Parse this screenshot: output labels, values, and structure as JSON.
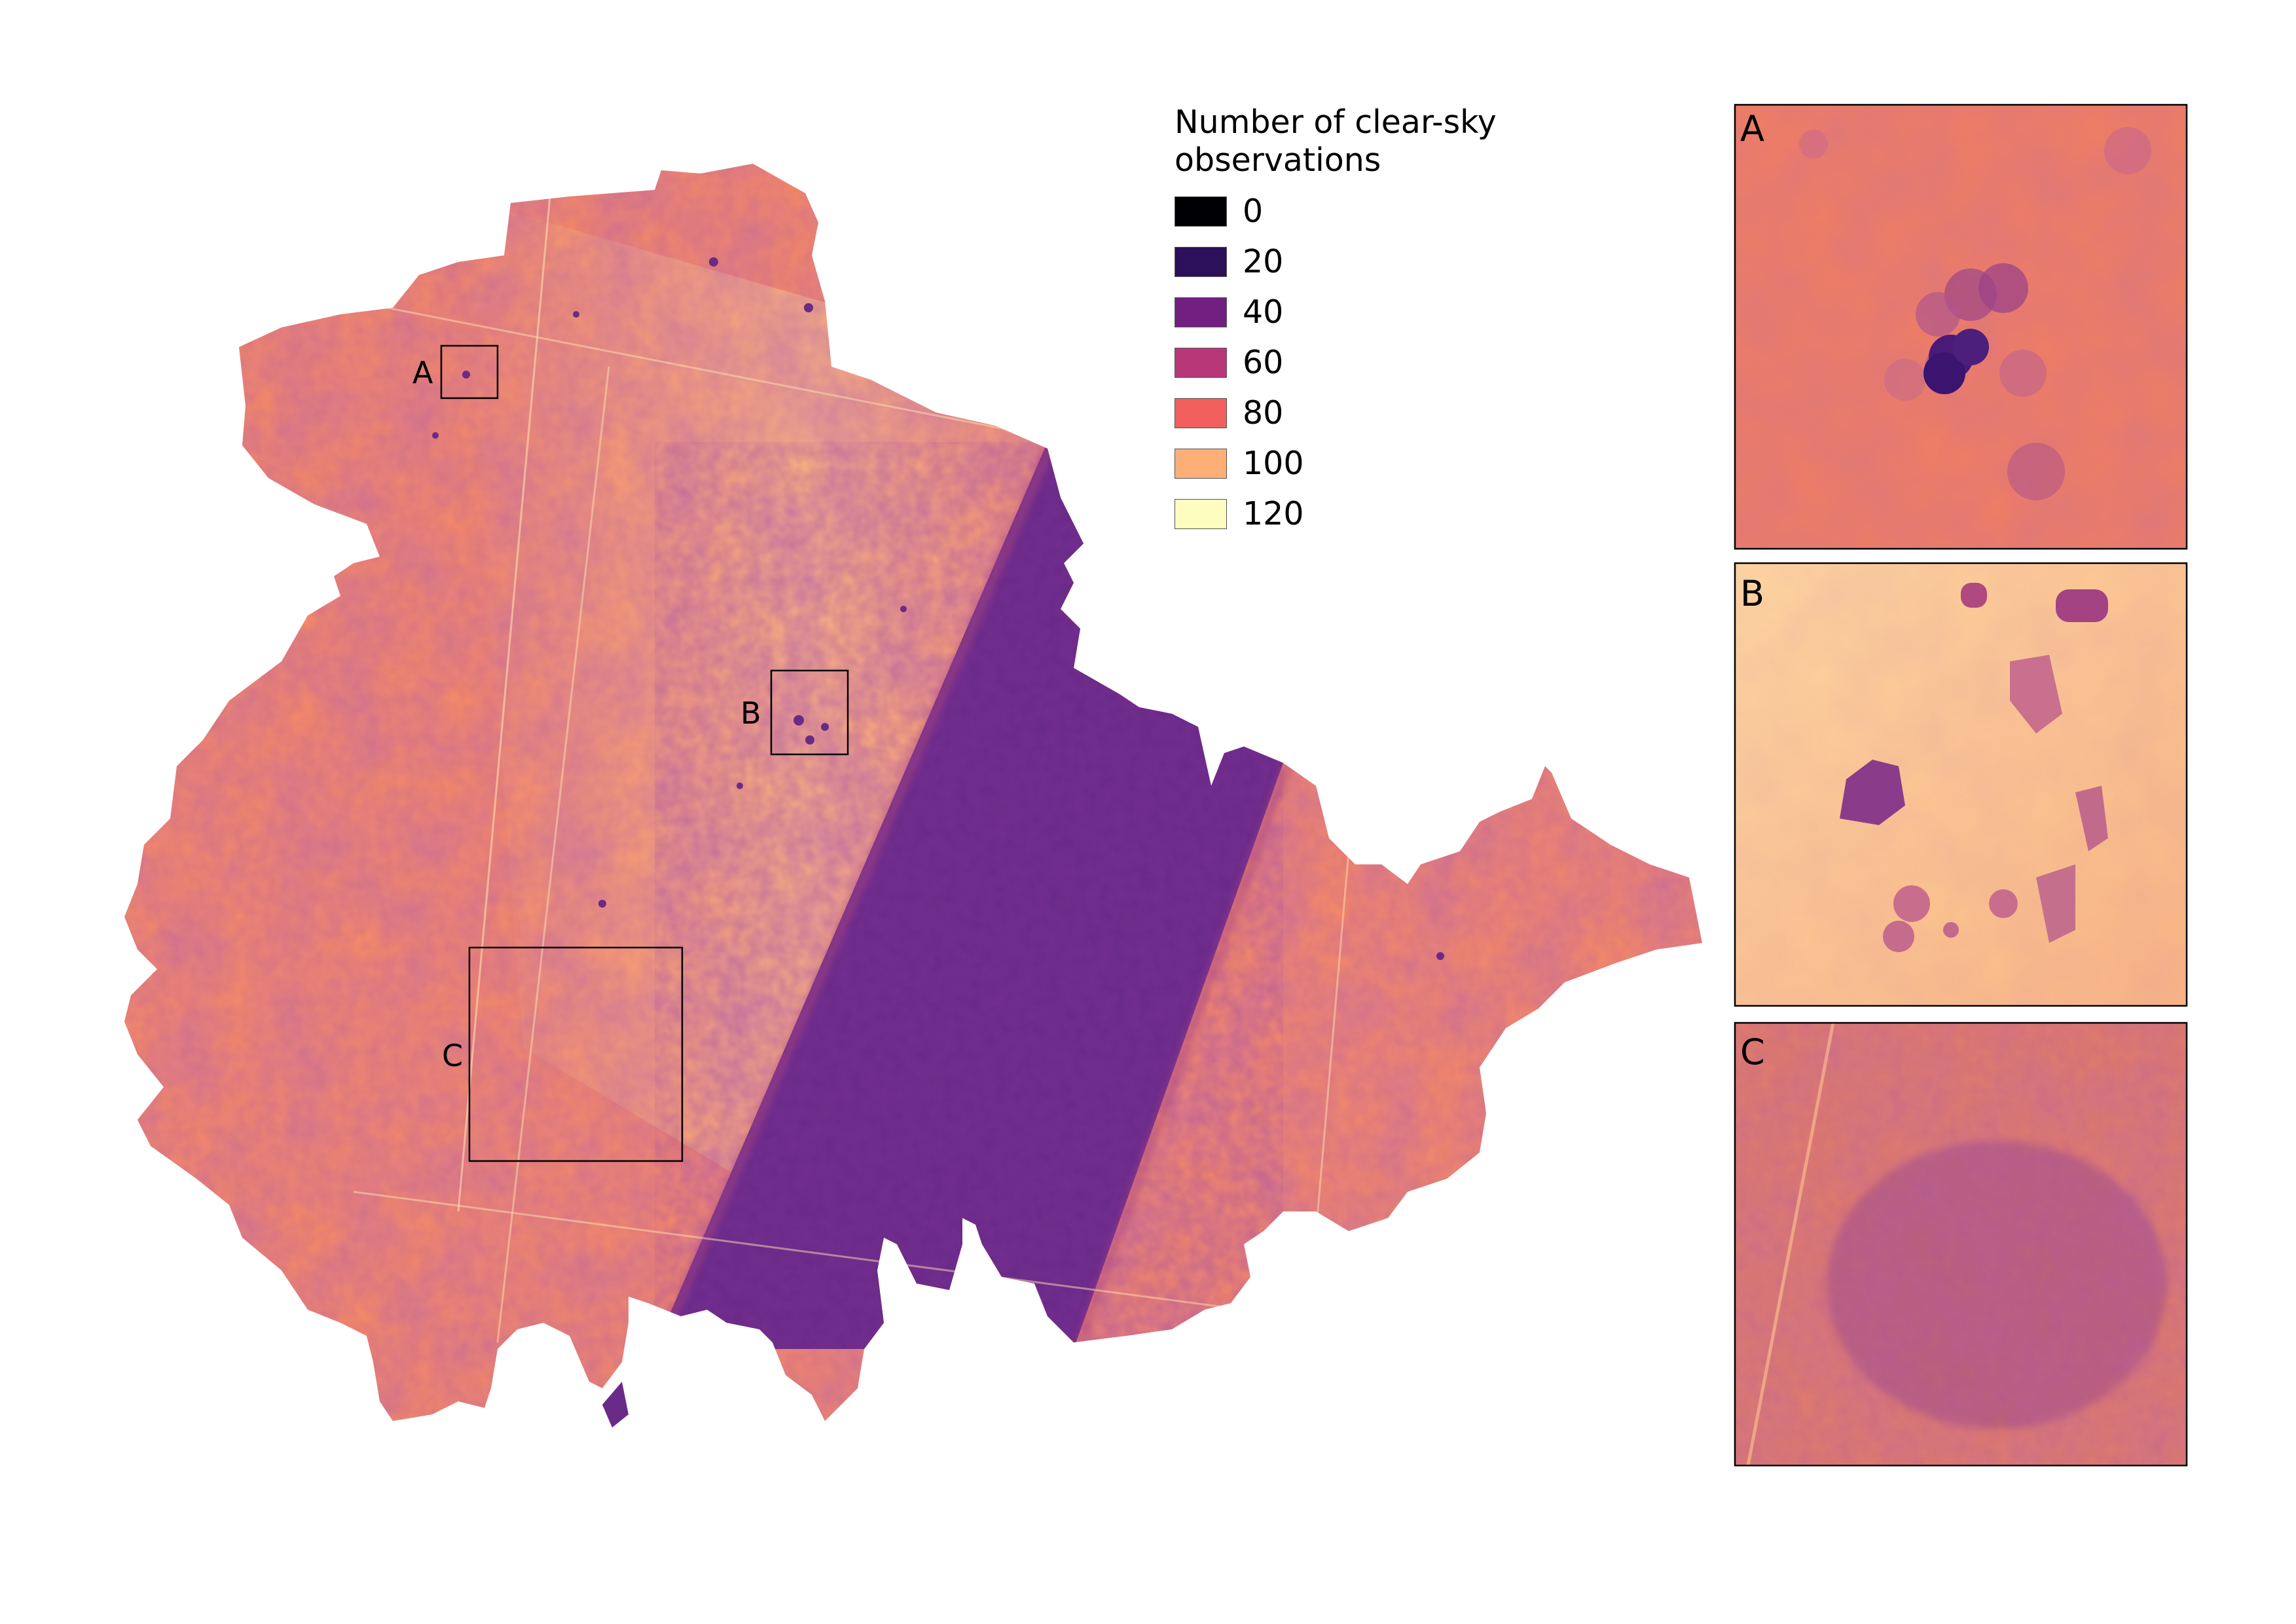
{
  "legend": {
    "title": "Number of clear-sky observations",
    "items": [
      {
        "label": "0",
        "color": "#000004"
      },
      {
        "label": "20",
        "color": "#2a115a"
      },
      {
        "label": "40",
        "color": "#721f81"
      },
      {
        "label": "60",
        "color": "#b73779"
      },
      {
        "label": "80",
        "color": "#f1605d"
      },
      {
        "label": "100",
        "color": "#feaf77"
      },
      {
        "label": "120",
        "color": "#fcfdbf"
      }
    ]
  },
  "map": {
    "region_color": "#f58a68",
    "swath_color": "#6a2a88",
    "light_color": "#fbc48e"
  },
  "boxes": {
    "a": {
      "label": "A"
    },
    "b": {
      "label": "B"
    },
    "c": {
      "label": "C"
    }
  },
  "insets": {
    "a": {
      "label": "A"
    },
    "b": {
      "label": "B"
    },
    "c": {
      "label": "C"
    }
  }
}
